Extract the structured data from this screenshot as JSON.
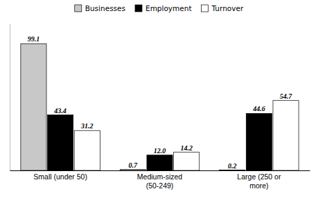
{
  "chart_data": {
    "type": "bar",
    "categories": [
      "Small (under 50)",
      "Medium-sized\n(50-249)",
      "Large (250 or\nmore)"
    ],
    "series": [
      {
        "name": "Businesses",
        "color": "#c8c8c8",
        "values": [
          99.1,
          0.7,
          0.2
        ],
        "value_labels": [
          "99.1",
          "0.7",
          "0.2"
        ]
      },
      {
        "name": "Employment",
        "color": "#000000",
        "values": [
          43.4,
          12.0,
          44.6
        ],
        "value_labels": [
          "43.4",
          "12.0",
          "44.6"
        ]
      },
      {
        "name": "Turnover",
        "color": "#ffffff",
        "values": [
          31.2,
          14.2,
          54.7
        ],
        "value_labels": [
          "31.2",
          "14.2",
          "54.7"
        ]
      }
    ],
    "ylim": [
      0,
      115
    ],
    "data_labels": true,
    "tick_labels": "x",
    "grid": false,
    "legend": "top"
  }
}
